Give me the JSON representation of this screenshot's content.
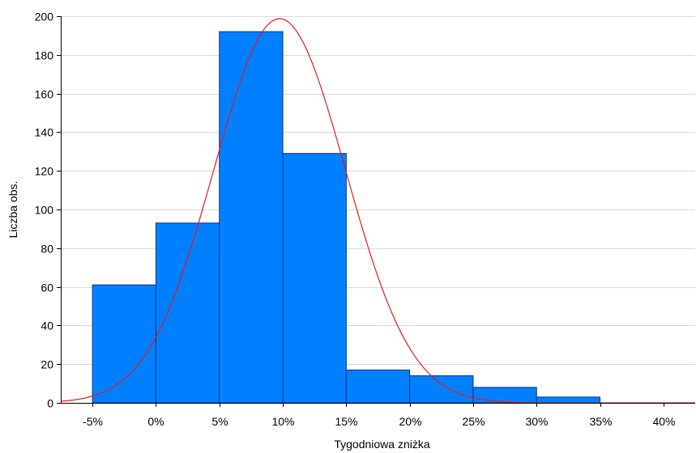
{
  "chart_data": {
    "type": "bar",
    "subtype": "histogram",
    "xlabel": "Tygodniowa zniżka",
    "ylabel": "Liczba obs.",
    "title": "",
    "x_range": [
      -0.075,
      0.425
    ],
    "ylim": [
      0,
      200
    ],
    "y_ticks": [
      0,
      20,
      40,
      60,
      80,
      100,
      120,
      140,
      160,
      180,
      200
    ],
    "x_ticks": [
      -0.05,
      0,
      0.05,
      0.1,
      0.15,
      0.2,
      0.25,
      0.3,
      0.35,
      0.4
    ],
    "x_tick_labels": [
      "-5%",
      "0%",
      "5%",
      "10%",
      "15%",
      "20%",
      "25%",
      "30%",
      "35%",
      "40%"
    ],
    "bins": [
      {
        "from": -0.05,
        "to": 0.0,
        "value": 61
      },
      {
        "from": 0.0,
        "to": 0.05,
        "value": 93
      },
      {
        "from": 0.05,
        "to": 0.1,
        "value": 192
      },
      {
        "from": 0.1,
        "to": 0.15,
        "value": 129
      },
      {
        "from": 0.15,
        "to": 0.2,
        "value": 17
      },
      {
        "from": 0.2,
        "to": 0.25,
        "value": 14
      },
      {
        "from": 0.25,
        "to": 0.3,
        "value": 8
      },
      {
        "from": 0.3,
        "to": 0.35,
        "value": 3
      },
      {
        "from": 0.35,
        "to": 0.4,
        "value": 0
      }
    ],
    "normal_curve": {
      "mean": 0.0975,
      "sd": 0.0519,
      "n": 517,
      "bin_width": 0.05
    },
    "grid": "horizontal",
    "colors": {
      "bar_fill": "#0080ff",
      "bar_stroke": "#0a2f8a",
      "curve": "#e41a1c",
      "grid": "#d8d8d8",
      "axis": "#000000"
    }
  }
}
